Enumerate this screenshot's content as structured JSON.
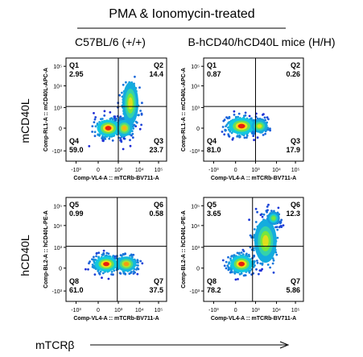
{
  "figure": {
    "title": "PMA & Ionomycin-treated",
    "column_headers": [
      "C57BL/6 (+/+)",
      "B-hCD40/hCD40L mice (H/H)"
    ],
    "row_labels": [
      "mCD40L",
      "hCD40L"
    ],
    "x_axis_caption": "mTCRβ"
  },
  "colors": {
    "density_low": "#1f2bd6",
    "density_mid": "#12c8e0",
    "density_high": "#e61e10",
    "gate_line": "#000000",
    "arrow": "#000000"
  },
  "chart_data": [
    {
      "type": "scatter",
      "panel": "C57BL/6 mCD40L",
      "xlabel": "Comp-VL4-A :: mTCRb-BV711-A",
      "ylabel": "Comp-RL1-A :: mCD40L-APC-A",
      "x_ticks": [
        "-10³",
        "0",
        "10³",
        "10⁴",
        "10⁵"
      ],
      "y_ticks": [
        "-10³",
        "0",
        "10³",
        "10⁴",
        "10⁵"
      ],
      "gate_x": 0.52,
      "gate_y": 0.53,
      "quadrants": [
        {
          "id": "Q1",
          "value": "2.95"
        },
        {
          "id": "Q2",
          "value": "14.4"
        },
        {
          "id": "Q3",
          "value": "23.7"
        },
        {
          "id": "Q4",
          "value": "59.0"
        }
      ],
      "populations": [
        {
          "x": 0.42,
          "y": 0.32,
          "spread_x": 0.07,
          "spread_y": 0.05,
          "weight": 1.0
        },
        {
          "x": 0.58,
          "y": 0.32,
          "spread_x": 0.05,
          "spread_y": 0.05,
          "weight": 0.7
        },
        {
          "x": 0.64,
          "y": 0.56,
          "spread_x": 0.05,
          "spread_y": 0.13,
          "weight": 0.55
        }
      ]
    },
    {
      "type": "scatter",
      "panel": "H/H mCD40L",
      "xlabel": "Comp-VL4-A :: mTCRb-BV711-A",
      "ylabel": "Comp-RL1-A :: mCD40L-APC-A",
      "x_ticks": [
        "-10³",
        "0",
        "10³",
        "10⁴",
        "10⁵"
      ],
      "y_ticks": [
        "-10³",
        "0",
        "10³",
        "10⁴",
        "10⁵"
      ],
      "gate_x": 0.52,
      "gate_y": 0.53,
      "quadrants": [
        {
          "id": "Q1",
          "value": "0.87"
        },
        {
          "id": "Q2",
          "value": "0.26"
        },
        {
          "id": "Q3",
          "value": "17.9"
        },
        {
          "id": "Q4",
          "value": "81.0"
        }
      ],
      "populations": [
        {
          "x": 0.38,
          "y": 0.34,
          "spread_x": 0.08,
          "spread_y": 0.05,
          "weight": 1.0
        },
        {
          "x": 0.56,
          "y": 0.34,
          "spread_x": 0.05,
          "spread_y": 0.04,
          "weight": 0.55
        }
      ]
    },
    {
      "type": "scatter",
      "panel": "C57BL/6 hCD40L",
      "xlabel": "Comp-VL4-A :: mTCRb-BV711-A",
      "ylabel": "Comp-BL2-A :: hCD40L-PE-A",
      "x_ticks": [
        "-10³",
        "0",
        "10³",
        "10⁴",
        "10⁵"
      ],
      "y_ticks": [
        "-10³",
        "0",
        "10³",
        "10⁴",
        "10⁵"
      ],
      "gate_x": 0.51,
      "gate_y": 0.53,
      "quadrants": [
        {
          "id": "Q5",
          "value": "0.99"
        },
        {
          "id": "Q6",
          "value": "0.58"
        },
        {
          "id": "Q7",
          "value": "37.5"
        },
        {
          "id": "Q8",
          "value": "61.0"
        }
      ],
      "populations": [
        {
          "x": 0.4,
          "y": 0.36,
          "spread_x": 0.07,
          "spread_y": 0.045,
          "weight": 1.0
        },
        {
          "x": 0.6,
          "y": 0.36,
          "spread_x": 0.06,
          "spread_y": 0.045,
          "weight": 0.75
        }
      ]
    },
    {
      "type": "scatter",
      "panel": "H/H hCD40L",
      "xlabel": "Comp-VL4-A :: mTCRb-BV711-A",
      "ylabel": "Comp-BL2-A :: hCD40L-PE-A",
      "x_ticks": [
        "-10³",
        "0",
        "10³",
        "10⁴",
        "10⁵"
      ],
      "y_ticks": [
        "-10³",
        "0",
        "10³",
        "10⁴",
        "10⁵"
      ],
      "gate_x": 0.49,
      "gate_y": 0.53,
      "quadrants": [
        {
          "id": "Q5",
          "value": "3.65"
        },
        {
          "id": "Q6",
          "value": "12.3"
        },
        {
          "id": "Q7",
          "value": "5.86"
        },
        {
          "id": "Q8",
          "value": "78.2"
        }
      ],
      "populations": [
        {
          "x": 0.38,
          "y": 0.36,
          "spread_x": 0.07,
          "spread_y": 0.05,
          "weight": 1.0
        },
        {
          "x": 0.62,
          "y": 0.58,
          "spread_x": 0.07,
          "spread_y": 0.13,
          "weight": 0.55
        },
        {
          "x": 0.7,
          "y": 0.8,
          "spread_x": 0.04,
          "spread_y": 0.04,
          "weight": 0.25
        }
      ]
    }
  ]
}
